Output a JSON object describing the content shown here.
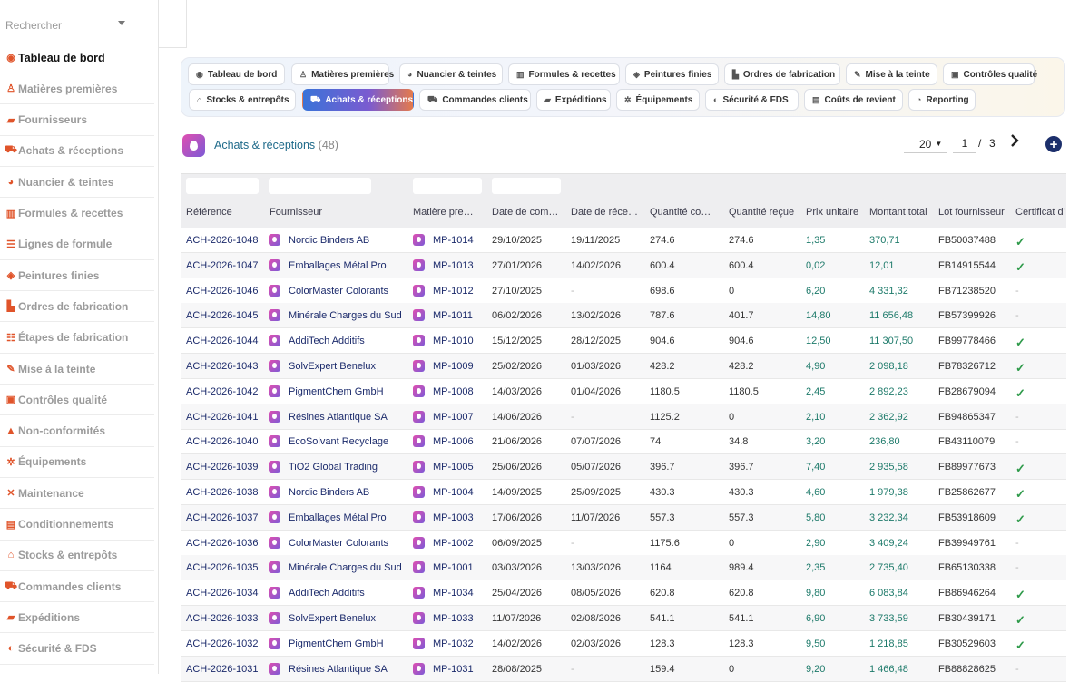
{
  "search": {
    "placeholder": "Rechercher"
  },
  "sidebar": {
    "items": [
      {
        "label": "Tableau de bord",
        "icon": "dashboard-icon",
        "glyph": "◉",
        "active": true
      },
      {
        "label": "Matières premières",
        "icon": "flask-icon",
        "glyph": "♙"
      },
      {
        "label": "Fournisseurs",
        "icon": "truck-icon",
        "glyph": "▰"
      },
      {
        "label": "Achats & réceptions",
        "icon": "cart-icon",
        "glyph": "⛟"
      },
      {
        "label": "Nuancier & teintes",
        "icon": "palette-icon",
        "glyph": "◕"
      },
      {
        "label": "Formules & recettes",
        "icon": "recipe-icon",
        "glyph": "▥"
      },
      {
        "label": "Lignes de formule",
        "icon": "list-icon",
        "glyph": "☰"
      },
      {
        "label": "Peintures finies",
        "icon": "paint-bucket-icon",
        "glyph": "◈"
      },
      {
        "label": "Ordres de fabrication",
        "icon": "factory-icon",
        "glyph": "▙"
      },
      {
        "label": "Étapes de fabrication",
        "icon": "steps-icon",
        "glyph": "☷"
      },
      {
        "label": "Mise à la teinte",
        "icon": "brush-icon",
        "glyph": "✎"
      },
      {
        "label": "Contrôles qualité",
        "icon": "clipboard-icon",
        "glyph": "▣"
      },
      {
        "label": "Non-conformités",
        "icon": "warning-icon",
        "glyph": "▲"
      },
      {
        "label": "Équipements",
        "icon": "gears-icon",
        "glyph": "✲"
      },
      {
        "label": "Maintenance",
        "icon": "tools-icon",
        "glyph": "✕"
      },
      {
        "label": "Conditionnements",
        "icon": "box-icon",
        "glyph": "▤"
      },
      {
        "label": "Stocks & entrepôts",
        "icon": "warehouse-icon",
        "glyph": "⌂"
      },
      {
        "label": "Commandes clients",
        "icon": "shopping-cart-icon",
        "glyph": "⛟"
      },
      {
        "label": "Expéditions",
        "icon": "shipping-truck-icon",
        "glyph": "▰"
      },
      {
        "label": "Sécurité & FDS",
        "icon": "shield-icon",
        "glyph": "◐"
      }
    ]
  },
  "nav": {
    "row1": [
      {
        "label": "Tableau de bord",
        "icon": "dashboard-icon",
        "glyph": "◉"
      },
      {
        "label": "Matières premières",
        "icon": "flask-icon",
        "glyph": "♙"
      },
      {
        "label": "Nuancier & teintes",
        "icon": "palette-icon",
        "glyph": "◕"
      },
      {
        "label": "Formules & recettes",
        "icon": "recipe-icon",
        "glyph": "▥"
      },
      {
        "label": "Peintures finies",
        "icon": "paint-bucket-icon",
        "glyph": "◈"
      },
      {
        "label": "Ordres de fabrication",
        "icon": "factory-icon",
        "glyph": "▙"
      },
      {
        "label": "Mise à la teinte",
        "icon": "brush-icon",
        "glyph": "✎"
      },
      {
        "label": "Contrôles qualité",
        "icon": "clipboard-icon",
        "glyph": "▣"
      }
    ],
    "row2": [
      {
        "label": "Stocks & entrepôts",
        "icon": "warehouse-icon",
        "glyph": "⌂"
      },
      {
        "label": "Achats & réceptions",
        "icon": "cart-icon",
        "glyph": "⛟",
        "active": true
      },
      {
        "label": "Commandes clients",
        "icon": "shopping-cart-icon",
        "glyph": "⛟"
      },
      {
        "label": "Expéditions",
        "icon": "shipping-truck-icon",
        "glyph": "▰"
      },
      {
        "label": "Équipements",
        "icon": "gears-icon",
        "glyph": "✲"
      },
      {
        "label": "Sécurité & FDS",
        "icon": "shield-icon",
        "glyph": "◐"
      },
      {
        "label": "Coûts de revient",
        "icon": "cost-icon",
        "glyph": "▤"
      },
      {
        "label": "Reporting",
        "icon": "chart-pie-icon",
        "glyph": "◔"
      }
    ]
  },
  "page": {
    "title": "Achats & réceptions",
    "count": "(48)",
    "icon": "drop-icon"
  },
  "pager": {
    "page_size": "20",
    "current_page": "1",
    "separator": "/",
    "total_pages": "3",
    "next_icon": "chevron-right-icon",
    "add_icon": "plus-icon",
    "add_label": "+"
  },
  "table": {
    "headers": [
      "Référence",
      "Fournisseur",
      "Matière pre…",
      "Date de com…",
      "Date de réce…",
      "Quantité co…",
      "Quantité reçue",
      "Prix unitaire",
      "Montant total",
      "Lot fournisseur",
      "Certificat d'"
    ],
    "rows": [
      [
        "ACH-2026-1048",
        "Nordic Binders AB",
        "MP-1014",
        "29/10/2025",
        "19/11/2025",
        "274.6",
        "274.6",
        "1,35",
        "370,71",
        "FB50037488",
        "✓"
      ],
      [
        "ACH-2026-1047",
        "Emballages Métal Pro",
        "MP-1013",
        "27/01/2026",
        "14/02/2026",
        "600.4",
        "600.4",
        "0,02",
        "12,01",
        "FB14915544",
        "✓"
      ],
      [
        "ACH-2026-1046",
        "ColorMaster Colorants",
        "MP-1012",
        "27/10/2025",
        "-",
        "698.6",
        "0",
        "6,20",
        "4 331,32",
        "FB71238520",
        "-"
      ],
      [
        "ACH-2026-1045",
        "Minérale Charges du Sud",
        "MP-1011",
        "06/02/2026",
        "13/02/2026",
        "787.6",
        "401.7",
        "14,80",
        "11 656,48",
        "FB57399926",
        "-"
      ],
      [
        "ACH-2026-1044",
        "AddiTech Additifs",
        "MP-1010",
        "15/12/2025",
        "28/12/2025",
        "904.6",
        "904.6",
        "12,50",
        "11 307,50",
        "FB99778466",
        "✓"
      ],
      [
        "ACH-2026-1043",
        "SolvExpert Benelux",
        "MP-1009",
        "25/02/2026",
        "01/03/2026",
        "428.2",
        "428.2",
        "4,90",
        "2 098,18",
        "FB78326712",
        "✓"
      ],
      [
        "ACH-2026-1042",
        "PigmentChem GmbH",
        "MP-1008",
        "14/03/2026",
        "01/04/2026",
        "1180.5",
        "1180.5",
        "2,45",
        "2 892,23",
        "FB28679094",
        "✓"
      ],
      [
        "ACH-2026-1041",
        "Résines Atlantique SA",
        "MP-1007",
        "14/06/2026",
        "-",
        "1125.2",
        "0",
        "2,10",
        "2 362,92",
        "FB94865347",
        "-"
      ],
      [
        "ACH-2026-1040",
        "EcoSolvant Recyclage",
        "MP-1006",
        "21/06/2026",
        "07/07/2026",
        "74",
        "34.8",
        "3,20",
        "236,80",
        "FB43110079",
        "-"
      ],
      [
        "ACH-2026-1039",
        "TiO2 Global Trading",
        "MP-1005",
        "25/06/2026",
        "05/07/2026",
        "396.7",
        "396.7",
        "7,40",
        "2 935,58",
        "FB89977673",
        "✓"
      ],
      [
        "ACH-2026-1038",
        "Nordic Binders AB",
        "MP-1004",
        "14/09/2025",
        "25/09/2025",
        "430.3",
        "430.3",
        "4,60",
        "1 979,38",
        "FB25862677",
        "✓"
      ],
      [
        "ACH-2026-1037",
        "Emballages Métal Pro",
        "MP-1003",
        "17/06/2026",
        "11/07/2026",
        "557.3",
        "557.3",
        "5,80",
        "3 232,34",
        "FB53918609",
        "✓"
      ],
      [
        "ACH-2026-1036",
        "ColorMaster Colorants",
        "MP-1002",
        "06/09/2025",
        "-",
        "1175.6",
        "0",
        "2,90",
        "3 409,24",
        "FB39949761",
        "-"
      ],
      [
        "ACH-2026-1035",
        "Minérale Charges du Sud",
        "MP-1001",
        "03/03/2026",
        "13/03/2026",
        "1164",
        "989.4",
        "2,35",
        "2 735,40",
        "FB65130338",
        "-"
      ],
      [
        "ACH-2026-1034",
        "AddiTech Additifs",
        "MP-1034",
        "25/04/2026",
        "08/05/2026",
        "620.8",
        "620.8",
        "9,80",
        "6 083,84",
        "FB86946264",
        "✓"
      ],
      [
        "ACH-2026-1033",
        "SolvExpert Benelux",
        "MP-1033",
        "11/07/2026",
        "02/08/2026",
        "541.1",
        "541.1",
        "6,90",
        "3 733,59",
        "FB30439171",
        "✓"
      ],
      [
        "ACH-2026-1032",
        "PigmentChem GmbH",
        "MP-1032",
        "14/02/2026",
        "02/03/2026",
        "128.3",
        "128.3",
        "9,50",
        "1 218,85",
        "FB30529603",
        "✓"
      ],
      [
        "ACH-2026-1031",
        "Résines Atlantique SA",
        "MP-1031",
        "28/08/2025",
        "-",
        "159.4",
        "0",
        "9,20",
        "1 466,48",
        "FB88828625",
        "-"
      ]
    ]
  },
  "colors": {
    "accent": "#1b2a6b",
    "money": "#1d7a6a",
    "check": "#2e9a4a",
    "brand_orange": "#e0542a"
  }
}
